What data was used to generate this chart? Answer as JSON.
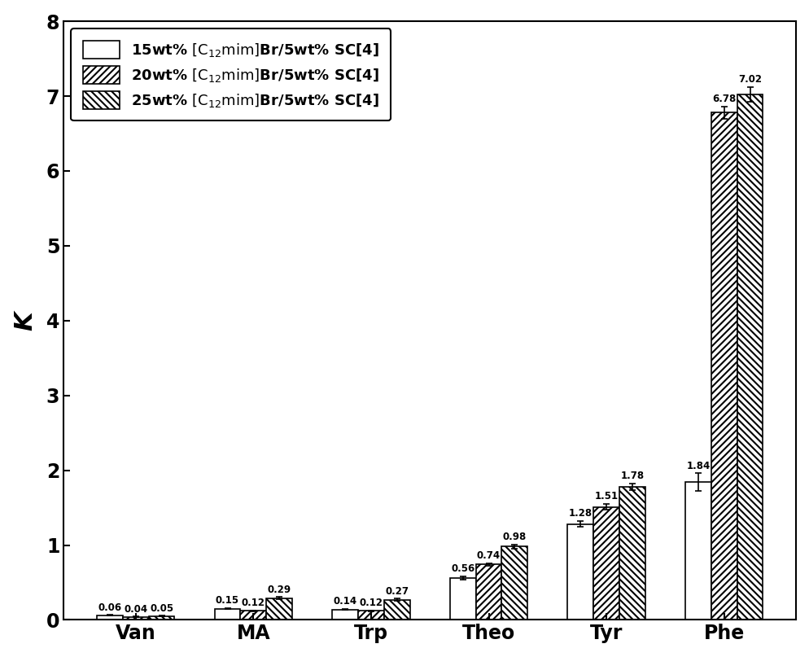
{
  "categories": [
    "Van",
    "MA",
    "Trp",
    "Theo",
    "Tyr",
    "Phe"
  ],
  "series": [
    {
      "label": "15wt% [C$_{12}$mim]Br/5wt% SC[4]",
      "values": [
        0.06,
        0.15,
        0.14,
        0.56,
        1.28,
        1.84
      ],
      "errors": [
        0.005,
        0.008,
        0.008,
        0.02,
        0.04,
        0.12
      ],
      "hatch": "",
      "facecolor": "white",
      "edgecolor": "black"
    },
    {
      "label": "20wt% [C$_{12}$mim]Br/5wt% SC[4]",
      "values": [
        0.04,
        0.12,
        0.12,
        0.74,
        1.51,
        6.78
      ],
      "errors": [
        0.005,
        0.008,
        0.008,
        0.02,
        0.04,
        0.08
      ],
      "hatch": "////",
      "facecolor": "white",
      "edgecolor": "black"
    },
    {
      "label": "25wt% [C$_{12}$mim]Br/5wt% SC[4]",
      "values": [
        0.05,
        0.29,
        0.27,
        0.98,
        1.78,
        7.02
      ],
      "errors": [
        0.005,
        0.015,
        0.015,
        0.03,
        0.04,
        0.1
      ],
      "hatch": "\\\\\\\\",
      "facecolor": "white",
      "edgecolor": "black"
    }
  ],
  "ylabel": "K",
  "ylim": [
    0,
    8
  ],
  "yticks": [
    0,
    1,
    2,
    3,
    4,
    5,
    6,
    7,
    8
  ],
  "bar_width": 0.22,
  "legend_fontsize": 13,
  "axis_label_fontsize": 22,
  "tick_fontsize": 17,
  "value_label_fontsize": 8.5,
  "background_color": "white",
  "figure_size": [
    9.95,
    8.07
  ],
  "dpi": 100
}
